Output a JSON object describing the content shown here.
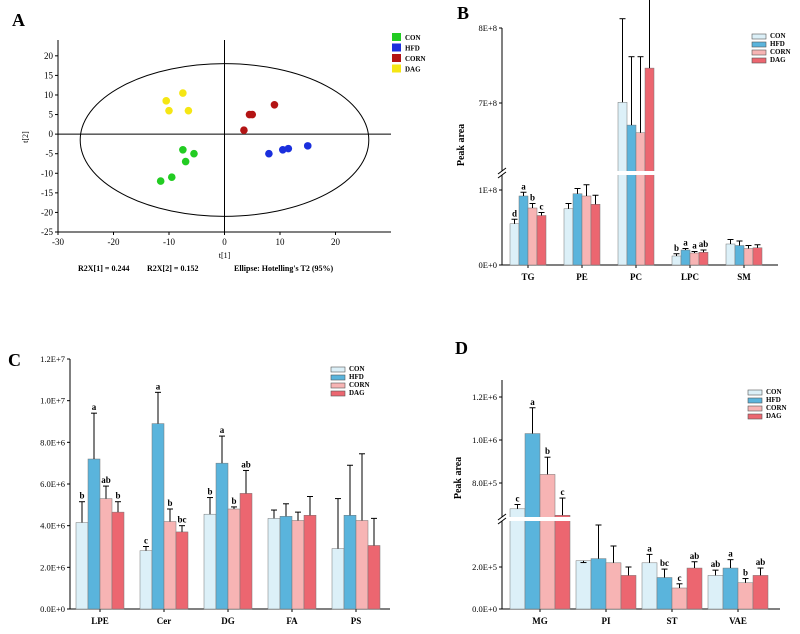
{
  "colors": {
    "CON": "#dcf0f8",
    "HFD": "#5ab4dc",
    "CORN": "#f7b4b4",
    "DAG": "#ec6670",
    "axis": "#000000"
  },
  "chart_data": [
    {
      "panel": "A",
      "type": "scatter",
      "xlabel": "t[1]",
      "ylabel": "t[2]",
      "xlim": [
        -30,
        30
      ],
      "ylim": [
        -25,
        22
      ],
      "xticks": [
        "-30",
        "-20",
        "-10",
        "0",
        "10",
        "20"
      ],
      "yticks": [
        "-25",
        "-20",
        "-15",
        "-10",
        "-5",
        "0",
        "5",
        "10",
        "15",
        "20"
      ],
      "legend": "top-right",
      "footnotes": [
        "R2X[1] = 0.244",
        "R2X[2] = 0.152",
        "Ellipse: Hotelling's T2 (95%)"
      ],
      "series": [
        {
          "name": "CON",
          "color": "#22cc22",
          "points": [
            [
              -11.5,
              -12
            ],
            [
              -9.5,
              -11
            ],
            [
              -7,
              -7
            ],
            [
              -5.5,
              -5
            ],
            [
              -7.5,
              -4
            ]
          ]
        },
        {
          "name": "HFD",
          "color": "#1a2fdd",
          "points": [
            [
              8,
              -5
            ],
            [
              10.5,
              -4
            ],
            [
              11.5,
              -3.7
            ],
            [
              15,
              -3
            ]
          ]
        },
        {
          "name": "CORN",
          "color": "#b31414",
          "points": [
            [
              3.5,
              1
            ],
            [
              4.5,
              5
            ],
            [
              5,
              5
            ],
            [
              9,
              7.5
            ]
          ]
        },
        {
          "name": "DAG",
          "color": "#f5e614",
          "points": [
            [
              -10.5,
              8.5
            ],
            [
              -10,
              6
            ],
            [
              -7.5,
              10.5
            ],
            [
              -6.5,
              6
            ]
          ]
        }
      ]
    },
    {
      "panel": "B",
      "type": "bar",
      "ylabel": "Peak area",
      "categories": [
        "TG",
        "PE",
        "PC",
        "LPC",
        "SM"
      ],
      "yticks": [
        "0E+0",
        "1E+8",
        "7E+8",
        "8E+8"
      ],
      "legend": "top-right",
      "series": [
        {
          "name": "CON",
          "values": [
            0.55,
            0.75,
            3.0,
            0.12,
            0.28
          ],
          "err": [
            0.06,
            0.07,
            2.2,
            0.03,
            0.06
          ]
        },
        {
          "name": "HFD",
          "values": [
            0.92,
            0.95,
            2.4,
            0.2,
            0.26
          ],
          "err": [
            0.05,
            0.07,
            1.8,
            0.02,
            0.06
          ]
        },
        {
          "name": "CORN",
          "values": [
            0.76,
            0.92,
            2.2,
            0.16,
            0.22
          ],
          "err": [
            0.06,
            0.15,
            2.0,
            0.02,
            0.04
          ]
        },
        {
          "name": "DAG",
          "values": [
            0.66,
            0.81,
            3.9,
            0.17,
            0.23
          ],
          "err": [
            0.04,
            0.12,
            1.9,
            0.03,
            0.04
          ]
        }
      ],
      "sig_labels": [
        [
          "d",
          "a",
          "b",
          "c"
        ],
        [],
        [],
        [
          "b",
          "a",
          "a",
          "ab"
        ],
        []
      ]
    },
    {
      "panel": "C",
      "type": "bar",
      "categories": [
        "LPE",
        "Cer",
        "DG",
        "FA",
        "PS"
      ],
      "yticks": [
        "0.0E+0",
        "2.0E+6",
        "4.0E+6",
        "6.0E+6",
        "8.0E+6",
        "1.0E+7",
        "1.2E+7"
      ],
      "ylim": [
        0,
        12000000
      ],
      "legend": "top-right",
      "series": [
        {
          "name": "CON",
          "values": [
            4150000,
            2800000,
            4550000,
            4350000,
            2900000
          ],
          "err": [
            1000000,
            200000,
            800000,
            400000,
            2400000
          ]
        },
        {
          "name": "HFD",
          "values": [
            7200000,
            8900000,
            7000000,
            4450000,
            4500000
          ],
          "err": [
            2200000,
            1500000,
            1300000,
            600000,
            2400000
          ]
        },
        {
          "name": "CORN",
          "values": [
            5300000,
            4200000,
            4800000,
            4250000,
            4250000
          ],
          "err": [
            600000,
            600000,
            100000,
            400000,
            3200000
          ]
        },
        {
          "name": "DAG",
          "values": [
            4650000,
            3700000,
            5550000,
            4500000,
            3050000
          ],
          "err": [
            500000,
            300000,
            1100000,
            900000,
            1300000
          ]
        }
      ],
      "sig_labels": [
        [
          "b",
          "a",
          "ab",
          "b"
        ],
        [
          "c",
          "a",
          "b",
          "bc"
        ],
        [
          "b",
          "a",
          "b",
          "ab"
        ],
        [],
        []
      ]
    },
    {
      "panel": "D",
      "type": "bar",
      "ylabel": "Peak area",
      "categories": [
        "MG",
        "PI",
        "ST",
        "VAE"
      ],
      "yticks": [
        "0.0E+0",
        "2.0E+5",
        "8.0E+5",
        "1.0E+6",
        "1.2E+6"
      ],
      "legend": "top-right",
      "series": [
        {
          "name": "CON",
          "values": [
            680000,
            230000,
            220000,
            160000
          ],
          "err": [
            20000,
            200000,
            40000,
            25000
          ]
        },
        {
          "name": "HFD",
          "values": [
            1030000,
            240000,
            150000,
            195000
          ],
          "err": [
            120000,
            160000,
            40000,
            40000
          ]
        },
        {
          "name": "CORN",
          "values": [
            840000,
            220000,
            100000,
            125000
          ],
          "err": [
            80000,
            80000,
            20000,
            20000
          ]
        },
        {
          "name": "DAG",
          "values": [
            650000,
            160000,
            195000,
            160000
          ],
          "err": [
            80000,
            40000,
            30000,
            35000
          ]
        }
      ],
      "sig_labels": [
        [
          "c",
          "a",
          "b",
          "c"
        ],
        [],
        [
          "a",
          "bc",
          "c",
          "ab"
        ],
        [
          "ab",
          "a",
          "b",
          "ab"
        ]
      ]
    }
  ]
}
